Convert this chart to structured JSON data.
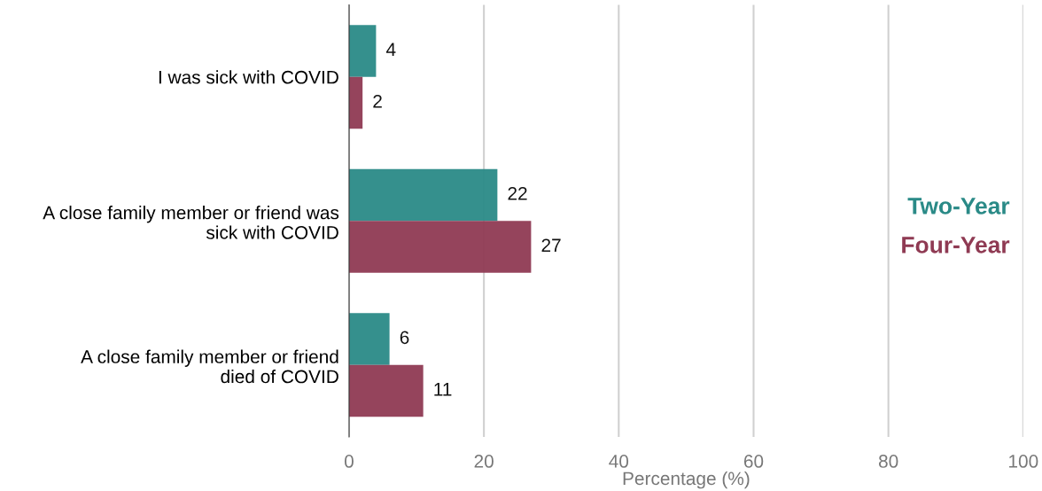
{
  "chart_data": {
    "type": "bar",
    "orientation": "horizontal",
    "xlabel": "Percentage (%)",
    "categories": [
      "I was sick with COVID",
      "A close family member or friend was\nsick with COVID",
      "A close family member or friend\ndied of COVID"
    ],
    "series": [
      {
        "name": "Two-Year",
        "color": "#2a8a87",
        "values": [
          4,
          22,
          6
        ]
      },
      {
        "name": "Four-Year",
        "color": "#8f3a53",
        "values": [
          2,
          27,
          11
        ]
      }
    ],
    "xlim": [
      0,
      100
    ],
    "xticks": [
      0,
      20,
      40,
      60,
      80,
      100
    ],
    "grid": "x",
    "legend": "right",
    "data_labels": true
  }
}
